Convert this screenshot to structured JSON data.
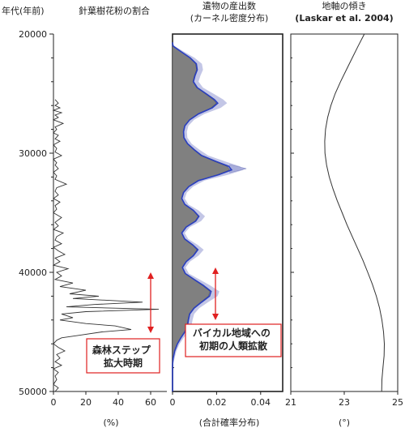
{
  "y_axis": {
    "label": "年代(年前)",
    "ticks": [
      20000,
      30000,
      40000,
      50000
    ],
    "range": [
      20000,
      50000
    ]
  },
  "panels": {
    "pollen": {
      "title": "針葉樹花粉の割合",
      "unit_label": "(%)",
      "x_ticks": [
        "0",
        "20",
        "40",
        "60"
      ],
      "callout": "森林ステップ\n拡大時期",
      "callout_color": "#e02020"
    },
    "artifacts": {
      "title_line1": "遺物の産出数",
      "title_line2": "(カーネル密度分布)",
      "unit_label": "(合計確率分布)",
      "x_ticks": [
        "0",
        "0.02",
        "0.04"
      ],
      "callout": "バイカル地域への\n初期の人類拡散",
      "callout_color": "#e02020",
      "fill_color": "#808080",
      "curve_color": "#2a3fbf",
      "band_color": "#a9aedb"
    },
    "obliquity": {
      "title_line1": "地軸の傾き",
      "title_line2": "(Laskar et al. 2004)",
      "unit_label": "(°)",
      "x_ticks": [
        "21",
        "23",
        "25"
      ]
    }
  },
  "chart_data": [
    {
      "type": "line",
      "panel": "pollen",
      "title": "針葉樹花粉の割合",
      "xlabel": "(%)",
      "ylabel": "年代(年前)",
      "xlim": [
        0,
        70
      ],
      "ylim": [
        20000,
        50000
      ],
      "y_reversed": true,
      "series": [
        {
          "points": [
            [
              25500,
              1
            ],
            [
              25800,
              3
            ],
            [
              26000,
              1
            ],
            [
              26200,
              4
            ],
            [
              26400,
              0
            ],
            [
              26600,
              5
            ],
            [
              26800,
              1
            ],
            [
              27000,
              3
            ],
            [
              27200,
              0
            ],
            [
              27500,
              6
            ],
            [
              27800,
              1
            ],
            [
              28000,
              2
            ],
            [
              28300,
              0
            ],
            [
              28500,
              3
            ],
            [
              28800,
              1
            ],
            [
              29000,
              4
            ],
            [
              29300,
              0
            ],
            [
              29600,
              2
            ],
            [
              29900,
              1
            ],
            [
              30200,
              5
            ],
            [
              30500,
              0
            ],
            [
              30800,
              2
            ],
            [
              31000,
              1
            ],
            [
              31300,
              3
            ],
            [
              31600,
              0
            ],
            [
              31900,
              2
            ],
            [
              32200,
              1
            ],
            [
              32600,
              8
            ],
            [
              32900,
              2
            ],
            [
              33200,
              1
            ],
            [
              33500,
              3
            ],
            [
              33800,
              0
            ],
            [
              34100,
              4
            ],
            [
              34400,
              1
            ],
            [
              34700,
              2
            ],
            [
              35000,
              0
            ],
            [
              35400,
              5
            ],
            [
              35800,
              1
            ],
            [
              36100,
              3
            ],
            [
              36400,
              0
            ],
            [
              36700,
              6
            ],
            [
              37000,
              2
            ],
            [
              37300,
              1
            ],
            [
              37600,
              5
            ],
            [
              37900,
              0
            ],
            [
              38200,
              3
            ],
            [
              38500,
              7
            ],
            [
              38800,
              1
            ],
            [
              39100,
              4
            ],
            [
              39400,
              0
            ],
            [
              39700,
              9
            ],
            [
              40000,
              2
            ],
            [
              40300,
              5
            ],
            [
              40600,
              1
            ],
            [
              40900,
              12
            ],
            [
              41200,
              4
            ],
            [
              41500,
              20
            ],
            [
              41800,
              10
            ],
            [
              42000,
              28
            ],
            [
              42200,
              12
            ],
            [
              42500,
              55
            ],
            [
              42700,
              25
            ],
            [
              42900,
              8
            ],
            [
              43100,
              65
            ],
            [
              43300,
              20
            ],
            [
              43500,
              5
            ],
            [
              43800,
              12
            ],
            [
              44000,
              4
            ],
            [
              44300,
              20
            ],
            [
              44500,
              38
            ],
            [
              44800,
              48
            ],
            [
              45000,
              30
            ],
            [
              45300,
              15
            ],
            [
              45500,
              5
            ],
            [
              45700,
              2
            ],
            [
              46000,
              0
            ],
            [
              46300,
              3
            ],
            [
              46600,
              7
            ],
            [
              46900,
              2
            ],
            [
              47200,
              4
            ],
            [
              47500,
              1
            ],
            [
              47800,
              5
            ],
            [
              48100,
              0
            ],
            [
              48400,
              3
            ],
            [
              48700,
              1
            ],
            [
              49000,
              2
            ],
            [
              49400,
              0
            ],
            [
              49700,
              3
            ],
            [
              50000,
              1
            ]
          ]
        }
      ]
    },
    {
      "type": "area",
      "panel": "artifacts",
      "title": "遺物の産出数 (カーネル密度分布)",
      "xlabel": "(合計確率分布)",
      "ylabel": "年代(年前)",
      "xlim": [
        0,
        0.05
      ],
      "ylim": [
        20000,
        50000
      ],
      "y_reversed": true,
      "series": [
        {
          "points": [
            [
              20700,
              0
            ],
            [
              21000,
              0.0002
            ],
            [
              21500,
              0.004
            ],
            [
              22000,
              0.008
            ],
            [
              22500,
              0.0108
            ],
            [
              23000,
              0.0112
            ],
            [
              23500,
              0.0102
            ],
            [
              24000,
              0.0095
            ],
            [
              24500,
              0.0112
            ],
            [
              25000,
              0.0152
            ],
            [
              25500,
              0.019
            ],
            [
              25800,
              0.0205
            ],
            [
              26200,
              0.018
            ],
            [
              26700,
              0.0118
            ],
            [
              27200,
              0.0078
            ],
            [
              27700,
              0.0056
            ],
            [
              28200,
              0.005
            ],
            [
              28700,
              0.0052
            ],
            [
              29200,
              0.0068
            ],
            [
              29700,
              0.0098
            ],
            [
              30200,
              0.0132
            ],
            [
              30700,
              0.0198
            ],
            [
              31100,
              0.0255
            ],
            [
              31400,
              0.0268
            ],
            [
              31800,
              0.021
            ],
            [
              32300,
              0.0118
            ],
            [
              32800,
              0.0074
            ],
            [
              33300,
              0.005
            ],
            [
              33800,
              0.0042
            ],
            [
              34300,
              0.0056
            ],
            [
              34800,
              0.0095
            ],
            [
              35300,
              0.012
            ],
            [
              35700,
              0.0105
            ],
            [
              36200,
              0.0062
            ],
            [
              36700,
              0.0042
            ],
            [
              37200,
              0.0055
            ],
            [
              37700,
              0.0092
            ],
            [
              38100,
              0.0115
            ],
            [
              38600,
              0.0095
            ],
            [
              39100,
              0.0062
            ],
            [
              39600,
              0.0045
            ],
            [
              40100,
              0.0058
            ],
            [
              40600,
              0.0098
            ],
            [
              41100,
              0.014
            ],
            [
              41600,
              0.0175
            ],
            [
              42000,
              0.0168
            ],
            [
              42500,
              0.0132
            ],
            [
              43000,
              0.0098
            ],
            [
              43500,
              0.0078
            ],
            [
              44000,
              0.0072
            ],
            [
              44500,
              0.0068
            ],
            [
              45000,
              0.0056
            ],
            [
              45500,
              0.0038
            ],
            [
              46000,
              0.0022
            ],
            [
              46600,
              0.001
            ],
            [
              47200,
              0.0003
            ],
            [
              47800,
              0
            ],
            [
              50000,
              0
            ]
          ]
        }
      ],
      "annotations": [
        {
          "y": 31300,
          "x": 0.0335,
          "kind": "spike"
        }
      ]
    },
    {
      "type": "line",
      "panel": "obliquity",
      "title": "地軸の傾き (Laskar et al. 2004)",
      "xlabel": "(°)",
      "ylabel": "年代(年前)",
      "xlim": [
        21,
        25
      ],
      "ylim": [
        20000,
        50000
      ],
      "y_reversed": true,
      "series": [
        {
          "points": [
            [
              20000,
              23.75
            ],
            [
              21000,
              23.52
            ],
            [
              22000,
              23.3
            ],
            [
              23000,
              23.08
            ],
            [
              24000,
              22.86
            ],
            [
              25000,
              22.66
            ],
            [
              26000,
              22.5
            ],
            [
              27000,
              22.38
            ],
            [
              28000,
              22.3
            ],
            [
              29000,
              22.27
            ],
            [
              30000,
              22.28
            ],
            [
              31000,
              22.34
            ],
            [
              32000,
              22.44
            ],
            [
              33000,
              22.58
            ],
            [
              34000,
              22.74
            ],
            [
              35000,
              22.92
            ],
            [
              36000,
              23.1
            ],
            [
              37000,
              23.3
            ],
            [
              38000,
              23.5
            ],
            [
              39000,
              23.7
            ],
            [
              40000,
              23.88
            ],
            [
              41000,
              24.05
            ],
            [
              42000,
              24.2
            ],
            [
              43000,
              24.32
            ],
            [
              44000,
              24.41
            ],
            [
              45000,
              24.47
            ],
            [
              46000,
              24.5
            ],
            [
              47000,
              24.49
            ],
            [
              48000,
              24.45
            ],
            [
              49000,
              24.41
            ],
            [
              50000,
              24.4
            ]
          ]
        }
      ]
    }
  ]
}
